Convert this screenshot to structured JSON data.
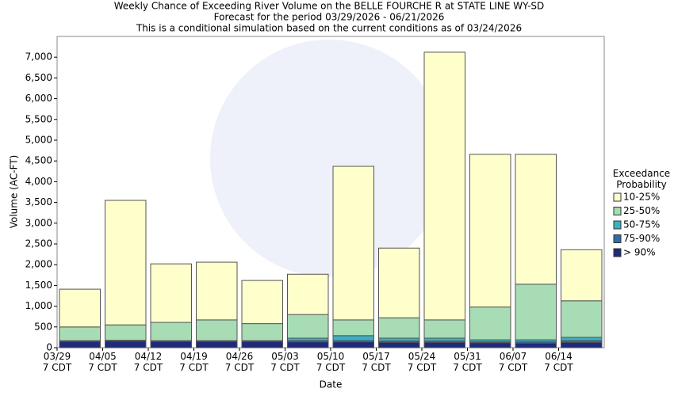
{
  "chart_data": {
    "type": "stacked_bar",
    "title": "Weekly Chance of Exceeding River Volume on the BELLE FOURCHE R at STATE LINE WY-SD",
    "subtitles": [
      "Forecast for the period 03/29/2026 - 06/21/2026",
      "This is a conditional simulation based on the current conditions as of 03/24/2026"
    ],
    "x_label": "Date",
    "y_label": "Volume (AC-FT)",
    "legend_title": "Exceedance Probability",
    "legend_position": "right",
    "categories": [
      "03/29 7 CDT",
      "04/05 7 CDT",
      "04/12 7 CDT",
      "04/19 7 CDT",
      "04/26 7 CDT",
      "05/03 7 CDT",
      "05/10 7 CDT",
      "05/17 7 CDT",
      "05/24 7 CDT",
      "05/31 7 CDT",
      "06/07 7 CDT",
      "06/14 7 CDT"
    ],
    "series": [
      {
        "name": "> 90%",
        "color": "#1f2a7a",
        "values": [
          150,
          160,
          150,
          150,
          150,
          140,
          140,
          130,
          130,
          120,
          110,
          130
        ]
      },
      {
        "name": "75-90%",
        "color": "#2a6eb0",
        "values": [
          10,
          10,
          10,
          10,
          10,
          30,
          30,
          30,
          30,
          20,
          30,
          40
        ]
      },
      {
        "name": "50-75%",
        "color": "#3ab0c0",
        "values": [
          10,
          10,
          10,
          10,
          10,
          60,
          120,
          70,
          70,
          50,
          50,
          80
        ]
      },
      {
        "name": "25-50%",
        "color": "#a8dcb4",
        "values": [
          330,
          370,
          440,
          500,
          410,
          570,
          380,
          490,
          440,
          790,
          1340,
          880
        ]
      },
      {
        "name": "10-25%",
        "color": "#ffffcc",
        "values": [
          910,
          3000,
          1410,
          1390,
          1040,
          970,
          3700,
          1680,
          6450,
          3680,
          3130,
          1230
        ]
      }
    ],
    "ylim": [
      0,
      7500
    ],
    "yticks": [
      0,
      500,
      {
        "value": 1000,
        "label": "1,000"
      },
      {
        "value": 1500,
        "label": "1,500"
      },
      {
        "value": 2000,
        "label": "2,000"
      },
      {
        "value": 2500,
        "label": "2,500"
      },
      {
        "value": 3000,
        "label": "3,000"
      },
      {
        "value": 3500,
        "label": "3,500"
      },
      {
        "value": 4000,
        "label": "4,000"
      },
      {
        "value": 4500,
        "label": "4,500"
      },
      {
        "value": 5000,
        "label": "5,000"
      },
      {
        "value": 5500,
        "label": "5,500"
      },
      {
        "value": 6000,
        "label": "6,000"
      },
      {
        "value": 6500,
        "label": "6,500"
      },
      {
        "value": 7000,
        "label": "7,000"
      }
    ],
    "grid": false
  }
}
